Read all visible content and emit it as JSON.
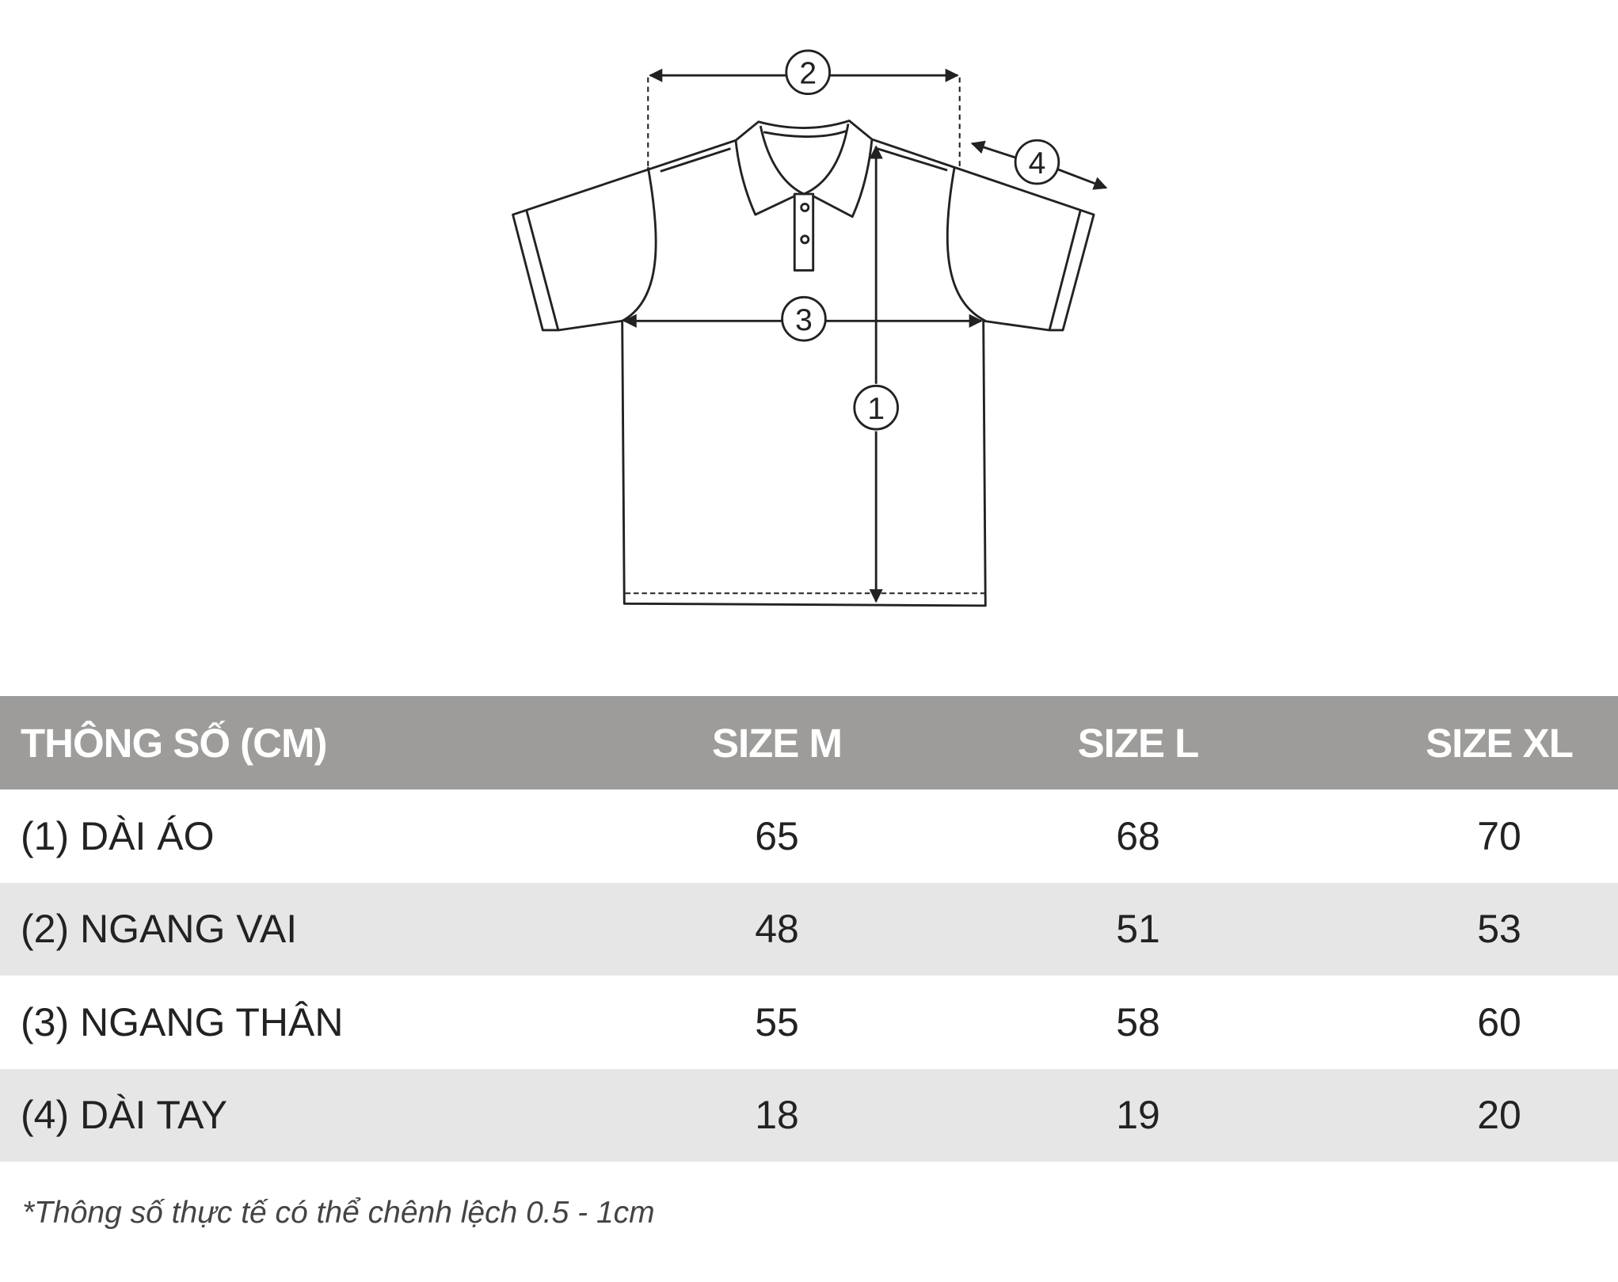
{
  "diagram": {
    "markers": [
      "1",
      "2",
      "3",
      "4"
    ]
  },
  "table": {
    "headers": [
      "THÔNG SỐ (CM)",
      "SIZE M",
      "SIZE L",
      "SIZE XL"
    ],
    "rows": [
      {
        "label": "(1) DÀI ÁO",
        "values": [
          "65",
          "68",
          "70"
        ]
      },
      {
        "label": "(2) NGANG VAI",
        "values": [
          "48",
          "51",
          "53"
        ]
      },
      {
        "label": "(3) NGANG THÂN",
        "values": [
          "55",
          "58",
          "60"
        ]
      },
      {
        "label": "(4) DÀI TAY",
        "values": [
          "18",
          "19",
          "20"
        ]
      }
    ]
  },
  "note": "*Thông số thực tế có thể chênh lệch 0.5 - 1cm",
  "colors": {
    "header_bg": "#9d9c9a",
    "alt_row_bg": "#e6e6e6",
    "line": "#222222"
  }
}
